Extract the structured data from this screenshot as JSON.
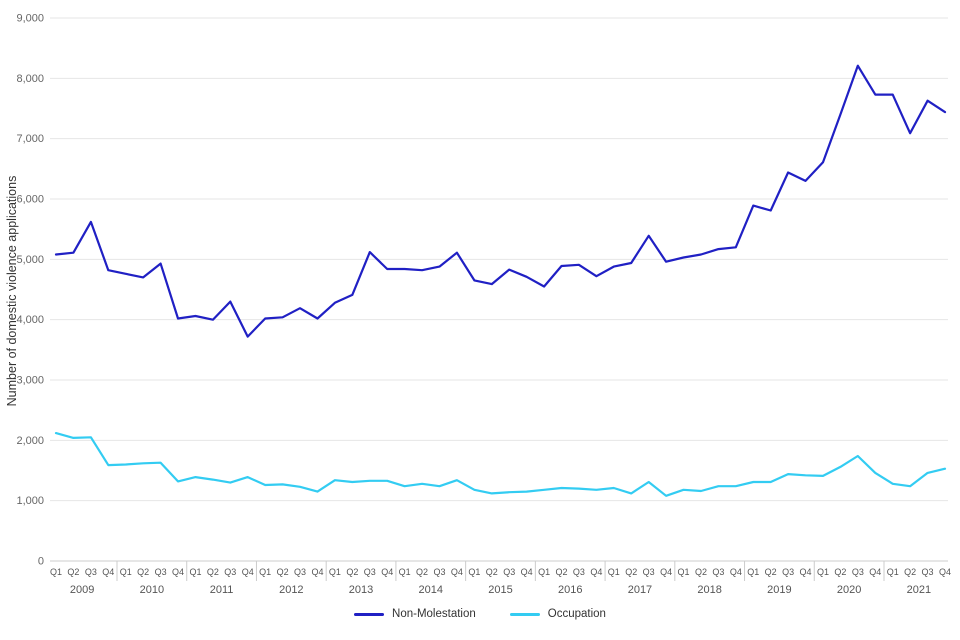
{
  "chart_data": {
    "type": "line",
    "title": "",
    "xlabel": "",
    "ylabel": "Number of domestic violence applications",
    "ylim": [
      0,
      9000
    ],
    "ytick_step": 1000,
    "ytick_labels": [
      "0",
      "1,000",
      "2,000",
      "3,000",
      "4,000",
      "5,000",
      "6,000",
      "7,000",
      "8,000",
      "9,000"
    ],
    "grid": true,
    "legend_position": "bottom",
    "quarter_labels": [
      "Q1",
      "Q2",
      "Q3",
      "Q4"
    ],
    "years": [
      "2009",
      "2010",
      "2011",
      "2012",
      "2013",
      "2014",
      "2015",
      "2016",
      "2017",
      "2018",
      "2019",
      "2020",
      "2021"
    ],
    "series": [
      {
        "name": "Non-Molestation",
        "color": "#2020c4",
        "values": [
          5080,
          5110,
          5620,
          4820,
          4760,
          4700,
          4930,
          4020,
          4060,
          4000,
          4300,
          3720,
          4020,
          4040,
          4190,
          4020,
          4280,
          4410,
          5120,
          4840,
          4840,
          4820,
          4880,
          5110,
          4650,
          4590,
          4830,
          4710,
          4550,
          4890,
          4910,
          4720,
          4880,
          4940,
          5390,
          4960,
          5030,
          5080,
          5170,
          5200,
          5890,
          5810,
          6440,
          6300,
          6610,
          7400,
          8210,
          7730,
          7730,
          7090,
          7630,
          7440
        ]
      },
      {
        "name": "Occupation",
        "color": "#33ccf2",
        "values": [
          2120,
          2040,
          2050,
          1590,
          1600,
          1620,
          1630,
          1320,
          1390,
          1350,
          1300,
          1390,
          1260,
          1270,
          1230,
          1150,
          1340,
          1310,
          1330,
          1330,
          1240,
          1280,
          1240,
          1340,
          1180,
          1120,
          1140,
          1150,
          1180,
          1210,
          1200,
          1180,
          1210,
          1120,
          1310,
          1080,
          1180,
          1160,
          1240,
          1240,
          1310,
          1310,
          1440,
          1420,
          1410,
          1560,
          1740,
          1460,
          1280,
          1240,
          1460,
          1530
        ]
      }
    ],
    "colors": {
      "gridline": "#e6e6e6",
      "axis_line": "#cccccc",
      "tick_text": "#666666",
      "category_text": "#555555",
      "axis_title_text": "#333333"
    }
  }
}
